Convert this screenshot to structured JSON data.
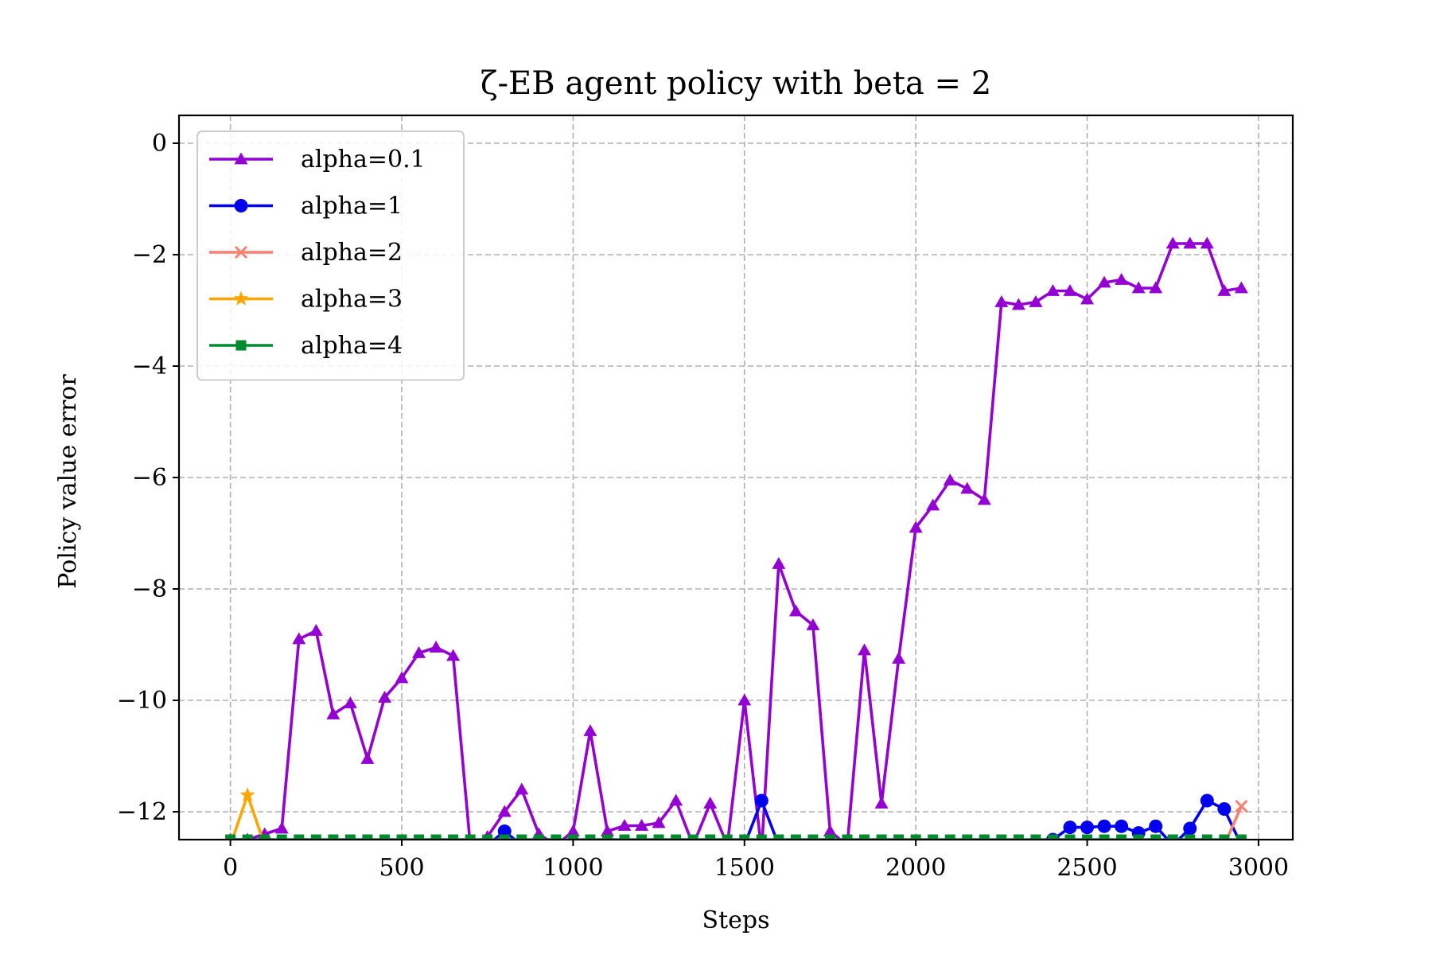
{
  "chart_data": {
    "type": "line",
    "title": "ζ-EB agent policy with beta = 2",
    "xlabel": "Steps",
    "ylabel": "Policy value error",
    "xlim": [
      -150,
      3100
    ],
    "ylim": [
      -12.5,
      0.5
    ],
    "xticks": [
      0,
      500,
      1000,
      1500,
      2000,
      2500,
      3000
    ],
    "xtick_labels": [
      "0",
      "500",
      "1000",
      "1500",
      "2000",
      "2500",
      "3000"
    ],
    "yticks": [
      0,
      -2,
      -4,
      -6,
      -8,
      -10,
      -12
    ],
    "ytick_labels": [
      "0",
      "−2",
      "−4",
      "−6",
      "−8",
      "−10",
      "−12"
    ],
    "grid": true,
    "legend_position": "upper-left",
    "series": [
      {
        "name": "alpha=0.1",
        "color": "#9400d3",
        "marker": "triangle",
        "x": [
          0,
          50,
          100,
          150,
          200,
          250,
          300,
          350,
          400,
          450,
          500,
          550,
          600,
          650,
          700,
          750,
          800,
          850,
          900,
          950,
          1000,
          1050,
          1100,
          1150,
          1200,
          1250,
          1300,
          1350,
          1400,
          1450,
          1500,
          1550,
          1600,
          1650,
          1700,
          1750,
          1800,
          1850,
          1900,
          1950,
          2000,
          2050,
          2100,
          2150,
          2200,
          2250,
          2300,
          2350,
          2400,
          2450,
          2500,
          2550,
          2600,
          2650,
          2700,
          2750,
          2800,
          2850,
          2900,
          2950
        ],
        "y": [
          -12.5,
          -12.5,
          -12.4,
          -12.3,
          -8.9,
          -8.75,
          -10.25,
          -10.05,
          -11.05,
          -9.95,
          -9.6,
          -9.15,
          -9.05,
          -9.2,
          -12.6,
          -12.45,
          -12.0,
          -11.6,
          -12.4,
          -12.6,
          -12.35,
          -10.55,
          -12.35,
          -12.25,
          -12.25,
          -12.2,
          -11.8,
          -12.6,
          -11.85,
          -12.6,
          -10.0,
          -12.7,
          -7.55,
          -8.4,
          -8.65,
          -12.35,
          -12.6,
          -9.1,
          -11.85,
          -9.25,
          -6.9,
          -6.5,
          -6.05,
          -6.2,
          -6.4,
          -2.85,
          -2.9,
          -2.85,
          -2.65,
          -2.65,
          -2.8,
          -2.5,
          -2.45,
          -2.6,
          -2.6,
          -1.8,
          -1.8,
          -1.8,
          -2.65,
          -2.6
        ]
      },
      {
        "name": "alpha=1",
        "color": "#0000ee",
        "marker": "circle",
        "x": [
          750,
          800,
          850,
          1500,
          1550,
          1600,
          2350,
          2400,
          2450,
          2500,
          2550,
          2600,
          2650,
          2700,
          2750,
          2800,
          2850,
          2900,
          2950
        ],
        "y": [
          -12.6,
          -12.35,
          -12.6,
          -12.6,
          -11.8,
          -12.6,
          -12.6,
          -12.5,
          -12.28,
          -12.28,
          -12.26,
          -12.26,
          -12.38,
          -12.26,
          -12.6,
          -12.3,
          -11.8,
          -11.95,
          -12.6
        ]
      },
      {
        "name": "alpha=2",
        "color": "#fa8072",
        "marker": "x",
        "x": [
          2900,
          2950
        ],
        "y": [
          -12.6,
          -11.9
        ]
      },
      {
        "name": "alpha=3",
        "color": "#ffa500",
        "marker": "star",
        "x": [
          0,
          50,
          100
        ],
        "y": [
          -12.6,
          -11.7,
          -12.6
        ]
      },
      {
        "name": "alpha=4",
        "color": "#008b2f",
        "marker": "square",
        "x": [
          0,
          50,
          100,
          150,
          200,
          250,
          300,
          350,
          400,
          450,
          500,
          550,
          600,
          650,
          700,
          750,
          800,
          850,
          900,
          950,
          1000,
          1050,
          1100,
          1150,
          1200,
          1250,
          1300,
          1350,
          1400,
          1450,
          1500,
          1550,
          1600,
          1650,
          1700,
          1750,
          1800,
          1850,
          1900,
          1950,
          2000,
          2050,
          2100,
          2150,
          2200,
          2250,
          2300,
          2350,
          2400,
          2450,
          2500,
          2550,
          2600,
          2650,
          2700,
          2750,
          2800,
          2850,
          2900,
          2950
        ],
        "y": [
          -12.5,
          -12.5,
          -12.5,
          -12.5,
          -12.5,
          -12.5,
          -12.5,
          -12.5,
          -12.5,
          -12.5,
          -12.5,
          -12.5,
          -12.5,
          -12.5,
          -12.5,
          -12.5,
          -12.5,
          -12.5,
          -12.5,
          -12.5,
          -12.5,
          -12.5,
          -12.5,
          -12.5,
          -12.5,
          -12.5,
          -12.5,
          -12.5,
          -12.5,
          -12.5,
          -12.5,
          -12.5,
          -12.5,
          -12.5,
          -12.5,
          -12.5,
          -12.5,
          -12.5,
          -12.5,
          -12.5,
          -12.5,
          -12.5,
          -12.5,
          -12.5,
          -12.5,
          -12.5,
          -12.5,
          -12.5,
          -12.5,
          -12.5,
          -12.5,
          -12.5,
          -12.5,
          -12.5,
          -12.5,
          -12.5,
          -12.5,
          -12.5,
          -12.5,
          -12.5
        ]
      }
    ]
  }
}
